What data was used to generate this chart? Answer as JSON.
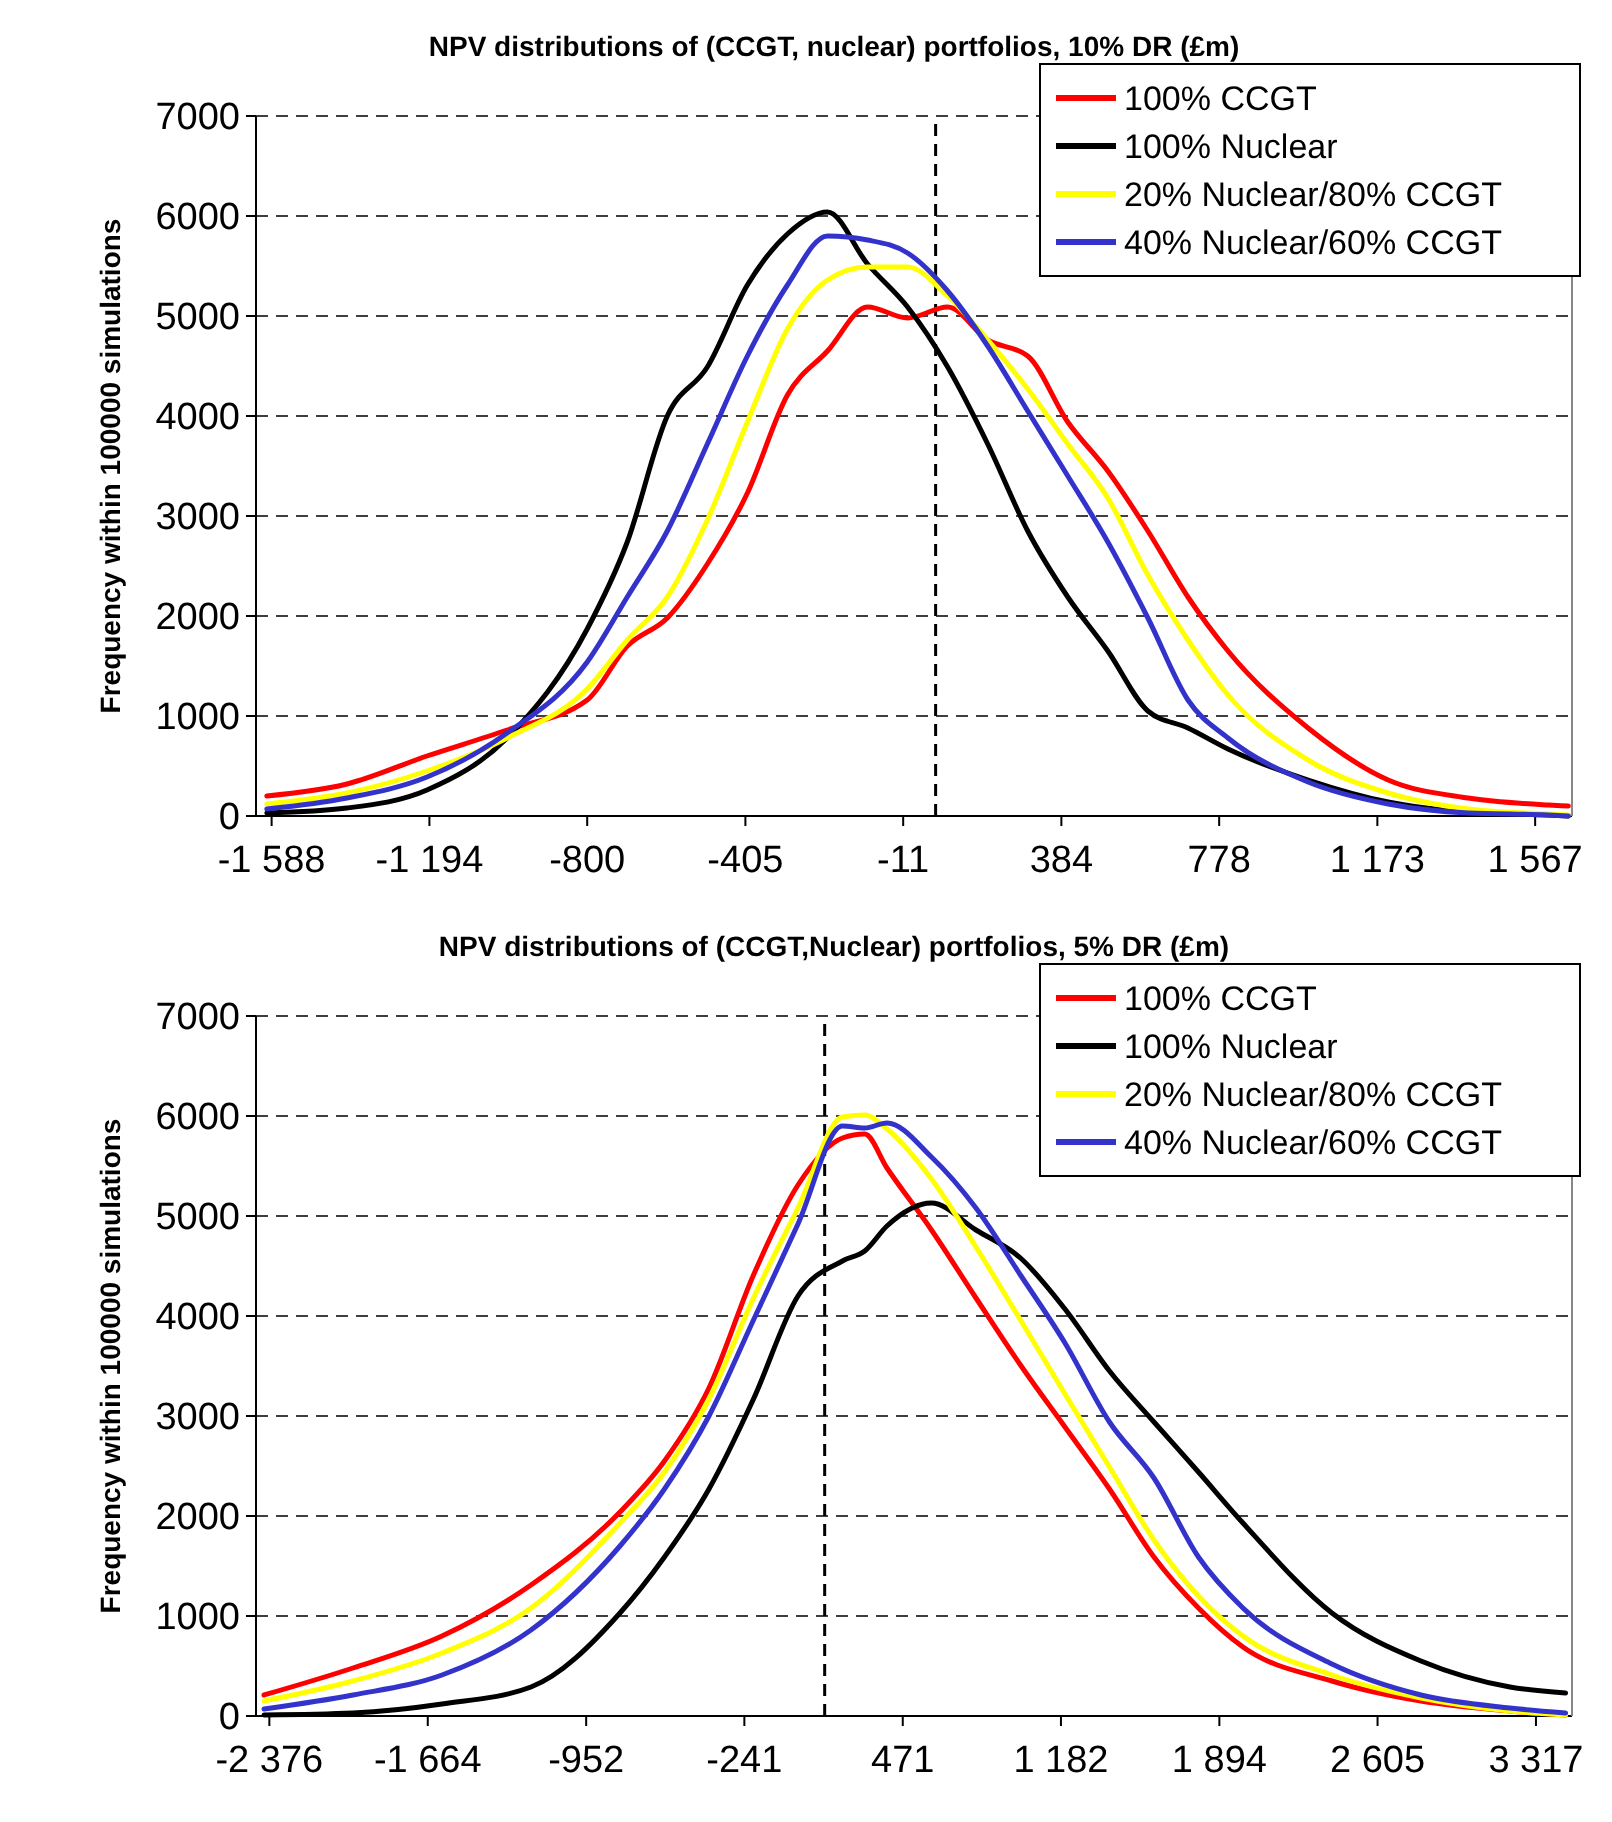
{
  "chart_data": [
    {
      "type": "line",
      "title": "NPV distributions of (CCGT, nuclear) portfolios, 10% DR (£m)",
      "ylabel": "Frequency within 100000 simulations",
      "x": [
        -1600,
        -1400,
        -1200,
        -1000,
        -800,
        -700,
        -600,
        -500,
        -400,
        -300,
        -200,
        -100,
        0,
        100,
        200,
        300,
        400,
        500,
        600,
        700,
        800,
        1000,
        1200,
        1400,
        1600,
        1650
      ],
      "series": [
        {
          "name": "100% CCGT",
          "color": "#ff0000",
          "values": [
            200,
            320,
            600,
            860,
            1160,
            1700,
            1980,
            2520,
            3230,
            4210,
            4650,
            5090,
            4980,
            5090,
            4760,
            4600,
            3940,
            3450,
            2850,
            2190,
            1650,
            880,
            360,
            180,
            110,
            100
          ]
        },
        {
          "name": "100% Nuclear",
          "color": "#000000",
          "values": [
            30,
            80,
            260,
            780,
            1870,
            2740,
            4000,
            4490,
            5310,
            5820,
            6040,
            5520,
            5090,
            4490,
            3720,
            2850,
            2190,
            1650,
            1050,
            880,
            670,
            360,
            140,
            40,
            10,
            0
          ]
        },
        {
          "name": "20% Nuclear/80% CCGT",
          "color": "#ffff00",
          "values": [
            120,
            230,
            450,
            780,
            1270,
            1760,
            2190,
            2960,
            3940,
            4870,
            5360,
            5490,
            5490,
            5200,
            4760,
            4270,
            3720,
            3180,
            2410,
            1760,
            1210,
            560,
            230,
            70,
            20,
            10
          ]
        },
        {
          "name": "40% Nuclear/60% CCGT",
          "color": "#3333cc",
          "values": [
            70,
            180,
            390,
            830,
            1540,
            2190,
            2850,
            3720,
            4600,
            5310,
            5800,
            5760,
            5630,
            5250,
            4700,
            4050,
            3400,
            2740,
            1980,
            1160,
            780,
            340,
            120,
            30,
            10,
            0
          ]
        }
      ],
      "xlim": [
        -1627,
        1659
      ],
      "xticks": [
        {
          "value": -1588,
          "label": "-1 588"
        },
        {
          "value": -1194,
          "label": "-1 194"
        },
        -800,
        -405,
        -11,
        384,
        778,
        {
          "value": 1173,
          "label": "1 173"
        },
        {
          "value": 1567,
          "label": "1 567"
        }
      ],
      "ylim": [
        0,
        7000
      ],
      "yticks": [
        0,
        1000,
        2000,
        3000,
        4000,
        5000,
        6000,
        7000
      ],
      "grid": "y",
      "legend": "top right",
      "marker": "none",
      "line_style": "solid",
      "ref_lines": [
        {
          "axis": "x",
          "value": 70,
          "color": "#000000",
          "line_style": "dashed"
        }
      ]
    },
    {
      "type": "line",
      "title": "NPV distributions of (CCGT,Nuclear) portfolios, 5% DR (£m)",
      "ylabel": "Frequency within 100000 simulations",
      "x": [
        -2400,
        -2000,
        -1600,
        -1200,
        -800,
        -600,
        -400,
        -200,
        0,
        200,
        300,
        400,
        600,
        800,
        1000,
        1200,
        1400,
        1600,
        1800,
        2000,
        2400,
        2800,
        3200,
        3450
      ],
      "series": [
        {
          "name": "100% CCGT",
          "color": "#ff0000",
          "values": [
            210,
            480,
            800,
            1310,
            2040,
            2550,
            3280,
            4410,
            5310,
            5780,
            5820,
            5480,
            4860,
            4180,
            3510,
            2890,
            2270,
            1590,
            1080,
            690,
            350,
            150,
            50,
            10
          ]
        },
        {
          "name": "100% Nuclear",
          "color": "#000000",
          "values": [
            10,
            30,
            120,
            290,
            1030,
            1590,
            2270,
            3170,
            4200,
            4550,
            4650,
            4900,
            5130,
            4860,
            4580,
            4070,
            3450,
            2940,
            2440,
            1930,
            1030,
            550,
            290,
            230
          ]
        },
        {
          "name": "20% Nuclear/80% CCGT",
          "color": "#ffff00",
          "values": [
            150,
            350,
            630,
            1080,
            1930,
            2440,
            3170,
            4180,
            5080,
            5990,
            6010,
            5870,
            5370,
            4690,
            3960,
            3220,
            2490,
            1760,
            1200,
            800,
            410,
            180,
            50,
            10
          ]
        },
        {
          "name": "40% Nuclear/60% CCGT",
          "color": "#3333cc",
          "values": [
            70,
            210,
            410,
            860,
            1700,
            2270,
            3000,
            3960,
            4920,
            5900,
            5880,
            5930,
            5590,
            5080,
            4410,
            3730,
            2940,
            2380,
            1590,
            1080,
            520,
            210,
            80,
            30
          ]
        }
      ],
      "xlim": [
        -2436,
        3479
      ],
      "xticks": [
        {
          "value": -2376,
          "label": "-2 376"
        },
        {
          "value": -1664,
          "label": "-1 664"
        },
        -952,
        -241,
        471,
        {
          "value": 1182,
          "label": "1 182"
        },
        {
          "value": 1894,
          "label": "1 894"
        },
        {
          "value": 2605,
          "label": "2 605"
        },
        {
          "value": 3317,
          "label": "3 317"
        }
      ],
      "ylim": [
        0,
        7000
      ],
      "yticks": [
        0,
        1000,
        2000,
        3000,
        4000,
        5000,
        6000,
        7000
      ],
      "grid": "y",
      "legend": "top right",
      "marker": "none",
      "line_style": "solid",
      "ref_lines": [
        {
          "axis": "x",
          "value": 120,
          "color": "#000000",
          "line_style": "dashed"
        }
      ]
    }
  ]
}
